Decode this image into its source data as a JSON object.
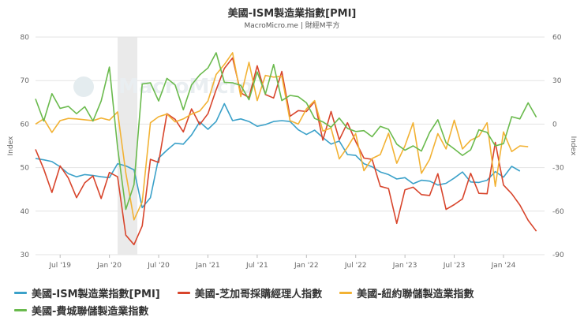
{
  "chart_data": {
    "type": "line",
    "title": "美國-ISM製造業指數[PMI]",
    "subtitle": "MacroMicro.me | 財經M平方",
    "left_axis": {
      "label": "Index",
      "range": [
        30,
        80
      ],
      "ticks": [
        "30",
        "40",
        "50",
        "60",
        "70",
        "80"
      ]
    },
    "right_axis": {
      "label": "Index",
      "range": [
        -90,
        60
      ],
      "ticks": [
        "-90",
        "-60",
        "-30",
        "0",
        "30",
        "60"
      ]
    },
    "x_axis": {
      "start": "2019-04",
      "end": "2024-06",
      "ticks": [
        "Jul '19",
        "Jan '20",
        "Jul '20",
        "Jan '21",
        "Jul '21",
        "Jan '22",
        "Jul '22",
        "Jan '23",
        "Jul '23",
        "Jan '24"
      ]
    },
    "shaded_region": [
      "2020-02",
      "2020-04"
    ],
    "grid": true,
    "legend_position": "bottom",
    "series": [
      {
        "name": "美國-ISM製造業指數[PMI]",
        "color": "#3ba1c9",
        "axis": "left",
        "start": "2019-04",
        "values": [
          52.1,
          51.8,
          51.4,
          50.2,
          48.6,
          47.9,
          48.4,
          48.2,
          47.9,
          47.7,
          50.9,
          50.4,
          49.5,
          40.8,
          43.1,
          52.2,
          54.0,
          55.6,
          55.4,
          57.5,
          60.5,
          58.8,
          60.6,
          64.7,
          60.8,
          61.2,
          60.6,
          59.5,
          59.9,
          60.6,
          60.8,
          60.6,
          58.7,
          57.6,
          58.6,
          56.9,
          55.4,
          56.1,
          53.0,
          52.8,
          50.9,
          50.2,
          49.0,
          48.4,
          47.4,
          47.7,
          46.3,
          47.1,
          46.9,
          46.0,
          46.4,
          47.6,
          49.0,
          46.7,
          46.6,
          47.1,
          49.1,
          47.8,
          50.3,
          49.2
        ]
      },
      {
        "name": "美國-芝加哥採購經理人指數",
        "color": "#d8452c",
        "axis": "left",
        "start": "2019-04",
        "values": [
          54.2,
          49.7,
          44.3,
          50.4,
          47.6,
          43.1,
          46.5,
          48.1,
          42.9,
          48.9,
          47.9,
          34.5,
          32.3,
          36.6,
          51.9,
          51.2,
          62.4,
          61.1,
          58.2,
          63.5,
          59.9,
          62.4,
          67.9,
          72.8,
          75.2,
          67.2,
          66.1,
          73.4,
          66.8,
          66.0,
          72.1,
          61.8,
          63.1,
          62.9,
          65.2,
          56.3,
          62.9,
          56.4,
          60.3,
          56.0,
          52.2,
          51.9,
          45.7,
          45.2,
          37.2,
          44.9,
          45.5,
          43.8,
          43.6,
          48.6,
          40.4,
          41.5,
          42.8,
          48.7,
          44.1,
          44.0,
          55.8,
          46.0,
          44.0,
          41.4,
          37.9,
          35.4
        ]
      },
      {
        "name": "美國-紐約聯儲製造業指數",
        "color": "#f2b234",
        "axis": "left",
        "start": "2019-04",
        "values": [
          60.0,
          61.2,
          58.1,
          60.8,
          61.3,
          61.2,
          61.0,
          60.8,
          61.4,
          60.9,
          62.8,
          48.8,
          38.0,
          42.1,
          60.3,
          61.7,
          62.3,
          60.5,
          61.2,
          62.3,
          63.0,
          65.3,
          71.4,
          73.7,
          76.4,
          66.3,
          74.2,
          65.4,
          71.2,
          70.8,
          71.0,
          60.8,
          60.0,
          63.5,
          65.4,
          58.4,
          59.1,
          52.0,
          54.7,
          57.8,
          49.3,
          52.1,
          53.0,
          57.9,
          51.0,
          55.0,
          60.3,
          48.7,
          51.9,
          57.8,
          54.3,
          60.9,
          54.3,
          56.3,
          57.2,
          60.3,
          45.7,
          58.2,
          53.7,
          55.0,
          54.8
        ]
      },
      {
        "name": "美國-費城聯儲製造業指數",
        "color": "#6aba4d",
        "axis": "left",
        "start": "2019-04",
        "values": [
          65.8,
          60.7,
          67.0,
          63.6,
          64.1,
          62.4,
          64.0,
          60.7,
          65.3,
          73.1,
          54.6,
          40.4,
          46.1,
          69.2,
          69.5,
          65.3,
          70.5,
          69.0,
          63.3,
          69.0,
          71.3,
          72.9,
          76.4,
          69.6,
          69.5,
          68.9,
          65.6,
          72.0,
          66.9,
          73.7,
          65.4,
          66.6,
          66.3,
          64.9,
          61.3,
          60.5,
          59.3,
          61.4,
          59.0,
          58.3,
          58.5,
          57.1,
          59.5,
          58.8,
          55.4,
          54.0,
          55.0,
          53.8,
          58.1,
          61.0,
          55.7,
          54.3,
          52.8,
          54.1,
          58.7,
          58.1,
          55.0,
          55.5,
          61.7,
          61.2,
          64.9,
          61.6
        ]
      }
    ]
  }
}
